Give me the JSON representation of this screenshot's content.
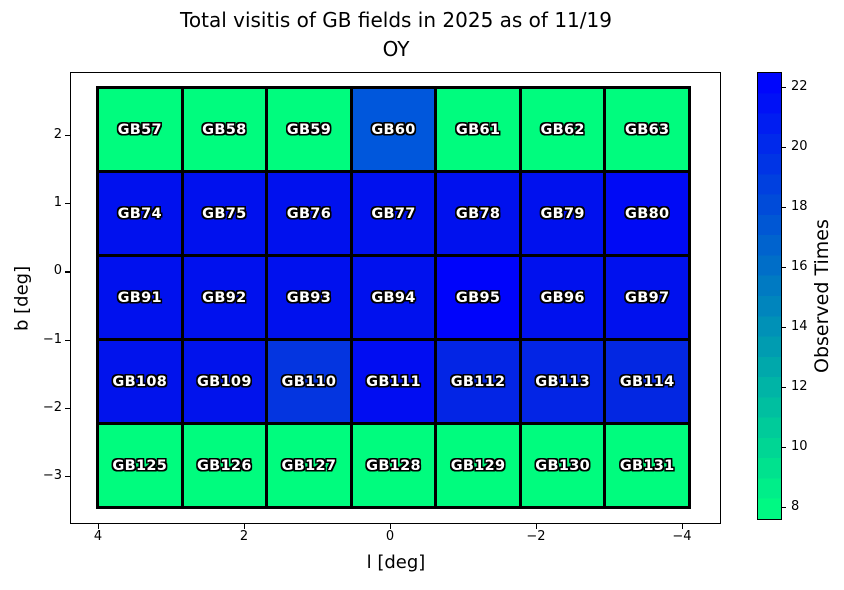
{
  "title": {
    "line1": "Total visitis of GB fields in 2025 as of 11/19",
    "line2": "OY"
  },
  "axes": {
    "xlabel": "l [deg]",
    "ylabel": "b [deg]",
    "x_tick_labels": [
      "4",
      "2",
      "0",
      "−2",
      "−4"
    ],
    "y_tick_labels": [
      "2",
      "1",
      "0",
      "−1",
      "−2",
      "−3"
    ]
  },
  "colorbar": {
    "label": "Observed Times",
    "tick_labels": [
      "22",
      "20",
      "18",
      "16",
      "14",
      "12",
      "10",
      "8"
    ],
    "top_color": "#0000ff",
    "bottom_color": "#00ff80",
    "steps": 22
  },
  "chart_data": {
    "type": "heatmap",
    "title": "Total visitis of GB fields in 2025 as of 11/19 OY",
    "xlabel": "l [deg]",
    "ylabel": "b [deg]",
    "colorbar_label": "Observed Times",
    "colorbar_ticks": [
      22,
      20,
      18,
      16,
      14,
      12,
      10,
      8
    ],
    "colorbar_range_est": [
      7.5,
      22.5
    ],
    "colormap": "winter_r (green=low, blue=high)",
    "x_axis": {
      "ticks": [
        4,
        2,
        0,
        -2,
        -4
      ],
      "inverted": true
    },
    "y_axis": {
      "ticks": [
        2,
        1,
        0,
        -1,
        -2,
        -3
      ]
    },
    "grid_rows": 5,
    "grid_cols": 7,
    "cells": [
      {
        "row": 0,
        "col": 0,
        "label": "GB57",
        "observed_times_est": 8,
        "color": "#00fc7e"
      },
      {
        "row": 0,
        "col": 1,
        "label": "GB58",
        "observed_times_est": 8,
        "color": "#00fc7e"
      },
      {
        "row": 0,
        "col": 2,
        "label": "GB59",
        "observed_times_est": 8,
        "color": "#00fc7e"
      },
      {
        "row": 0,
        "col": 3,
        "label": "GB60",
        "observed_times_est": 17,
        "color": "#0057dc"
      },
      {
        "row": 0,
        "col": 4,
        "label": "GB61",
        "observed_times_est": 8,
        "color": "#00fc7e"
      },
      {
        "row": 0,
        "col": 5,
        "label": "GB62",
        "observed_times_est": 8,
        "color": "#00fc7e"
      },
      {
        "row": 0,
        "col": 6,
        "label": "GB63",
        "observed_times_est": 8,
        "color": "#00fc7e"
      },
      {
        "row": 1,
        "col": 0,
        "label": "GB74",
        "observed_times_est": 21,
        "color": "#0011ee"
      },
      {
        "row": 1,
        "col": 1,
        "label": "GB75",
        "observed_times_est": 21,
        "color": "#0011ee"
      },
      {
        "row": 1,
        "col": 2,
        "label": "GB76",
        "observed_times_est": 21,
        "color": "#0011ee"
      },
      {
        "row": 1,
        "col": 3,
        "label": "GB77",
        "observed_times_est": 21,
        "color": "#0011ee"
      },
      {
        "row": 1,
        "col": 4,
        "label": "GB78",
        "observed_times_est": 21,
        "color": "#0011ee"
      },
      {
        "row": 1,
        "col": 5,
        "label": "GB79",
        "observed_times_est": 21,
        "color": "#0011ee"
      },
      {
        "row": 1,
        "col": 6,
        "label": "GB80",
        "observed_times_est": 22,
        "color": "#000af5"
      },
      {
        "row": 2,
        "col": 0,
        "label": "GB91",
        "observed_times_est": 21,
        "color": "#0011ee"
      },
      {
        "row": 2,
        "col": 1,
        "label": "GB92",
        "observed_times_est": 21,
        "color": "#0011ee"
      },
      {
        "row": 2,
        "col": 2,
        "label": "GB93",
        "observed_times_est": 21,
        "color": "#0011ee"
      },
      {
        "row": 2,
        "col": 3,
        "label": "GB94",
        "observed_times_est": 21,
        "color": "#0011ee"
      },
      {
        "row": 2,
        "col": 4,
        "label": "GB95",
        "observed_times_est": 22,
        "color": "#0004fb"
      },
      {
        "row": 2,
        "col": 5,
        "label": "GB96",
        "observed_times_est": 21,
        "color": "#0011ee"
      },
      {
        "row": 2,
        "col": 6,
        "label": "GB97",
        "observed_times_est": 21,
        "color": "#0011ee"
      },
      {
        "row": 3,
        "col": 0,
        "label": "GB108",
        "observed_times_est": 21,
        "color": "#0113ec"
      },
      {
        "row": 3,
        "col": 1,
        "label": "GB109",
        "observed_times_est": 21,
        "color": "#0113ec"
      },
      {
        "row": 3,
        "col": 2,
        "label": "GB110",
        "observed_times_est": 19,
        "color": "#0435e0"
      },
      {
        "row": 3,
        "col": 3,
        "label": "GB111",
        "observed_times_est": 21,
        "color": "#010df2"
      },
      {
        "row": 3,
        "col": 4,
        "label": "GB112",
        "observed_times_est": 20,
        "color": "#0325e5"
      },
      {
        "row": 3,
        "col": 5,
        "label": "GB113",
        "observed_times_est": 20,
        "color": "#0325e5"
      },
      {
        "row": 3,
        "col": 6,
        "label": "GB114",
        "observed_times_est": 20,
        "color": "#0327e2"
      },
      {
        "row": 4,
        "col": 0,
        "label": "GB125",
        "observed_times_est": 8,
        "color": "#00fc7e"
      },
      {
        "row": 4,
        "col": 1,
        "label": "GB126",
        "observed_times_est": 8,
        "color": "#00fc7e"
      },
      {
        "row": 4,
        "col": 2,
        "label": "GB127",
        "observed_times_est": 8,
        "color": "#00fc7e"
      },
      {
        "row": 4,
        "col": 3,
        "label": "GB128",
        "observed_times_est": 8,
        "color": "#00fc7e"
      },
      {
        "row": 4,
        "col": 4,
        "label": "GB129",
        "observed_times_est": 8,
        "color": "#00fc7e"
      },
      {
        "row": 4,
        "col": 5,
        "label": "GB130",
        "observed_times_est": 8,
        "color": "#00fc7e"
      },
      {
        "row": 4,
        "col": 6,
        "label": "GB131",
        "observed_times_est": 8,
        "color": "#00fc7e"
      }
    ]
  }
}
